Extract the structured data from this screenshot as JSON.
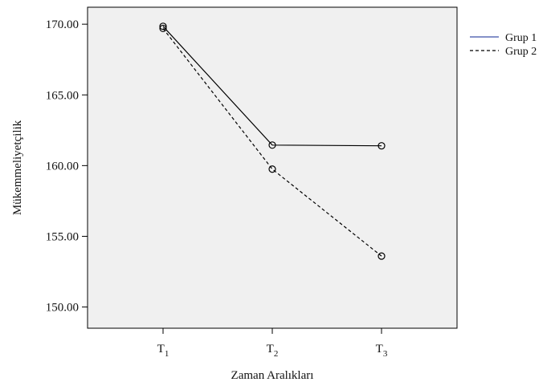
{
  "chart_data": {
    "type": "line",
    "xlabel": "Zaman Aralıkları",
    "ylabel": "Mükemmeliyetçilik",
    "ylim": [
      148.5,
      171.2
    ],
    "y_ticks": [
      150.0,
      155.0,
      160.0,
      165.0,
      170.0
    ],
    "y_tick_labels": [
      "150.00",
      "155.00",
      "160.00",
      "165.00",
      "170.00"
    ],
    "categories": [
      {
        "base": "T",
        "sub": "1"
      },
      {
        "base": "T",
        "sub": "2"
      },
      {
        "base": "T",
        "sub": "3"
      }
    ],
    "series": [
      {
        "name": "Grup 1",
        "values": [
          169.85,
          161.45,
          161.4
        ],
        "color": "#000000",
        "dash": "solid",
        "legend_color": "#3b4fa8"
      },
      {
        "name": "Grup 2",
        "values": [
          169.7,
          159.75,
          153.6
        ],
        "color": "#000000",
        "dash": "dashed",
        "legend_color": "#000000"
      }
    ],
    "marker": "circle-open",
    "plot_background": "#f0f0f0",
    "grid": false,
    "legend_position": "top-right"
  }
}
